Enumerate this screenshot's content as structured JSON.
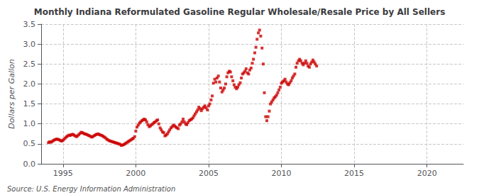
{
  "chart_data": {
    "type": "scatter",
    "title": "Monthly Indiana Reformulated Gasoline Regular Wholesale/Resale Price by All Sellers",
    "ylabel": "Dollars per Gallon",
    "annotation": "Source: U.S. Energy Information Administration",
    "color": "#cc0000",
    "marker": "square",
    "grid": true,
    "xlim": [
      1993.5,
      2022.5
    ],
    "xticks": [
      1995,
      2000,
      2005,
      2010,
      2015,
      2020
    ],
    "ylim": [
      0.0,
      3.5
    ],
    "yticks": [
      {
        "value": 0,
        "label": "0.0"
      },
      0.5,
      {
        "value": 1,
        "label": "1.0"
      },
      1.5,
      {
        "value": 2,
        "label": "2.0"
      },
      2.5,
      {
        "value": 3,
        "label": "3.0"
      },
      3.5
    ],
    "x": [
      1994.0,
      1994.08,
      1994.17,
      1994.25,
      1994.33,
      1994.42,
      1994.5,
      1994.58,
      1994.67,
      1994.75,
      1994.83,
      1994.92,
      1995.0,
      1995.08,
      1995.17,
      1995.25,
      1995.33,
      1995.42,
      1995.5,
      1995.58,
      1995.67,
      1995.75,
      1995.83,
      1995.92,
      1996.0,
      1996.08,
      1996.17,
      1996.25,
      1996.33,
      1996.42,
      1996.5,
      1996.58,
      1996.67,
      1996.75,
      1996.83,
      1996.92,
      1997.0,
      1997.08,
      1997.17,
      1997.25,
      1997.33,
      1997.42,
      1997.5,
      1997.58,
      1997.67,
      1997.75,
      1997.83,
      1997.92,
      1998.0,
      1998.08,
      1998.17,
      1998.25,
      1998.33,
      1998.42,
      1998.5,
      1998.58,
      1998.67,
      1998.75,
      1998.83,
      1998.92,
      1999.0,
      1999.08,
      1999.17,
      1999.25,
      1999.33,
      1999.42,
      1999.5,
      1999.58,
      1999.67,
      1999.75,
      1999.83,
      1999.92,
      2000.0,
      2000.08,
      2000.17,
      2000.25,
      2000.33,
      2000.42,
      2000.5,
      2000.58,
      2000.67,
      2000.75,
      2000.83,
      2000.92,
      2001.0,
      2001.08,
      2001.17,
      2001.25,
      2001.33,
      2001.42,
      2001.5,
      2001.58,
      2001.67,
      2001.75,
      2001.83,
      2001.92,
      2002.0,
      2002.08,
      2002.17,
      2002.25,
      2002.33,
      2002.42,
      2002.5,
      2002.58,
      2002.67,
      2002.75,
      2002.83,
      2002.92,
      2003.0,
      2003.08,
      2003.17,
      2003.25,
      2003.33,
      2003.42,
      2003.5,
      2003.58,
      2003.67,
      2003.75,
      2003.83,
      2003.92,
      2004.0,
      2004.08,
      2004.17,
      2004.25,
      2004.33,
      2004.42,
      2004.5,
      2004.58,
      2004.67,
      2004.75,
      2004.83,
      2004.92,
      2005.0,
      2005.08,
      2005.17,
      2005.25,
      2005.33,
      2005.42,
      2005.5,
      2005.58,
      2005.67,
      2005.75,
      2005.83,
      2005.92,
      2006.0,
      2006.08,
      2006.17,
      2006.25,
      2006.33,
      2006.42,
      2006.5,
      2006.58,
      2006.67,
      2006.75,
      2006.83,
      2006.92,
      2007.0,
      2007.08,
      2007.17,
      2007.25,
      2007.33,
      2007.42,
      2007.5,
      2007.58,
      2007.67,
      2007.75,
      2007.83,
      2007.92,
      2008.0,
      2008.08,
      2008.17,
      2008.25,
      2008.33,
      2008.42,
      2008.5,
      2008.58,
      2008.67,
      2008.75,
      2008.83,
      2008.92,
      2009.0,
      2009.08,
      2009.17,
      2009.25,
      2009.33,
      2009.42,
      2009.5,
      2009.58,
      2009.67,
      2009.75,
      2009.83,
      2009.92,
      2010.0,
      2010.08,
      2010.17,
      2010.25,
      2010.33,
      2010.42,
      2010.5,
      2010.58,
      2010.67,
      2010.75,
      2010.83,
      2010.92,
      2011.0,
      2011.08,
      2011.17,
      2011.25,
      2011.33,
      2011.42,
      2011.5,
      2011.58,
      2011.67,
      2011.75,
      2011.83,
      2011.92,
      2012.0,
      2012.08,
      2012.17,
      2012.25,
      2012.33,
      2012.42
    ],
    "values": [
      0.53,
      0.55,
      0.54,
      0.56,
      0.58,
      0.6,
      0.61,
      0.62,
      0.61,
      0.6,
      0.58,
      0.57,
      0.59,
      0.62,
      0.65,
      0.68,
      0.7,
      0.72,
      0.71,
      0.73,
      0.74,
      0.72,
      0.7,
      0.68,
      0.7,
      0.73,
      0.76,
      0.79,
      0.78,
      0.76,
      0.75,
      0.74,
      0.73,
      0.71,
      0.7,
      0.68,
      0.67,
      0.69,
      0.71,
      0.73,
      0.74,
      0.75,
      0.73,
      0.72,
      0.71,
      0.69,
      0.67,
      0.65,
      0.62,
      0.6,
      0.58,
      0.57,
      0.56,
      0.55,
      0.54,
      0.53,
      0.52,
      0.51,
      0.5,
      0.49,
      0.46,
      0.47,
      0.48,
      0.5,
      0.52,
      0.54,
      0.56,
      0.58,
      0.6,
      0.62,
      0.64,
      0.68,
      0.82,
      0.92,
      0.97,
      1.02,
      1.05,
      1.08,
      1.1,
      1.12,
      1.1,
      1.05,
      0.98,
      0.93,
      0.95,
      0.98,
      1.0,
      1.03,
      1.05,
      1.08,
      1.1,
      1.0,
      0.9,
      0.85,
      0.8,
      0.78,
      0.7,
      0.72,
      0.75,
      0.8,
      0.85,
      0.9,
      0.93,
      0.97,
      0.95,
      0.92,
      0.9,
      0.88,
      0.97,
      1.0,
      1.05,
      1.12,
      1.05,
      1.0,
      0.98,
      1.03,
      1.08,
      1.1,
      1.12,
      1.15,
      1.2,
      1.25,
      1.3,
      1.35,
      1.42,
      1.38,
      1.33,
      1.38,
      1.42,
      1.45,
      1.4,
      1.35,
      1.45,
      1.5,
      1.6,
      1.7,
      2.02,
      2.12,
      2.05,
      2.15,
      2.2,
      2.05,
      1.9,
      1.8,
      1.85,
      1.9,
      2.0,
      2.18,
      2.28,
      2.32,
      2.3,
      2.18,
      2.08,
      1.98,
      1.92,
      1.88,
      1.92,
      1.98,
      2.03,
      2.15,
      2.25,
      2.28,
      2.32,
      2.38,
      2.28,
      2.25,
      2.35,
      2.4,
      2.52,
      2.62,
      2.78,
      2.92,
      3.12,
      3.28,
      3.35,
      3.2,
      2.9,
      2.5,
      1.78,
      1.18,
      1.08,
      1.18,
      1.32,
      1.5,
      1.55,
      1.6,
      1.65,
      1.68,
      1.72,
      1.78,
      1.85,
      1.92,
      2.02,
      2.05,
      2.08,
      2.12,
      2.05,
      2.0,
      1.98,
      2.03,
      2.08,
      2.15,
      2.2,
      2.25,
      2.42,
      2.52,
      2.58,
      2.62,
      2.58,
      2.52,
      2.48,
      2.52,
      2.58,
      2.52,
      2.45,
      2.42,
      2.5,
      2.55,
      2.6,
      2.55,
      2.5,
      2.45
    ]
  }
}
